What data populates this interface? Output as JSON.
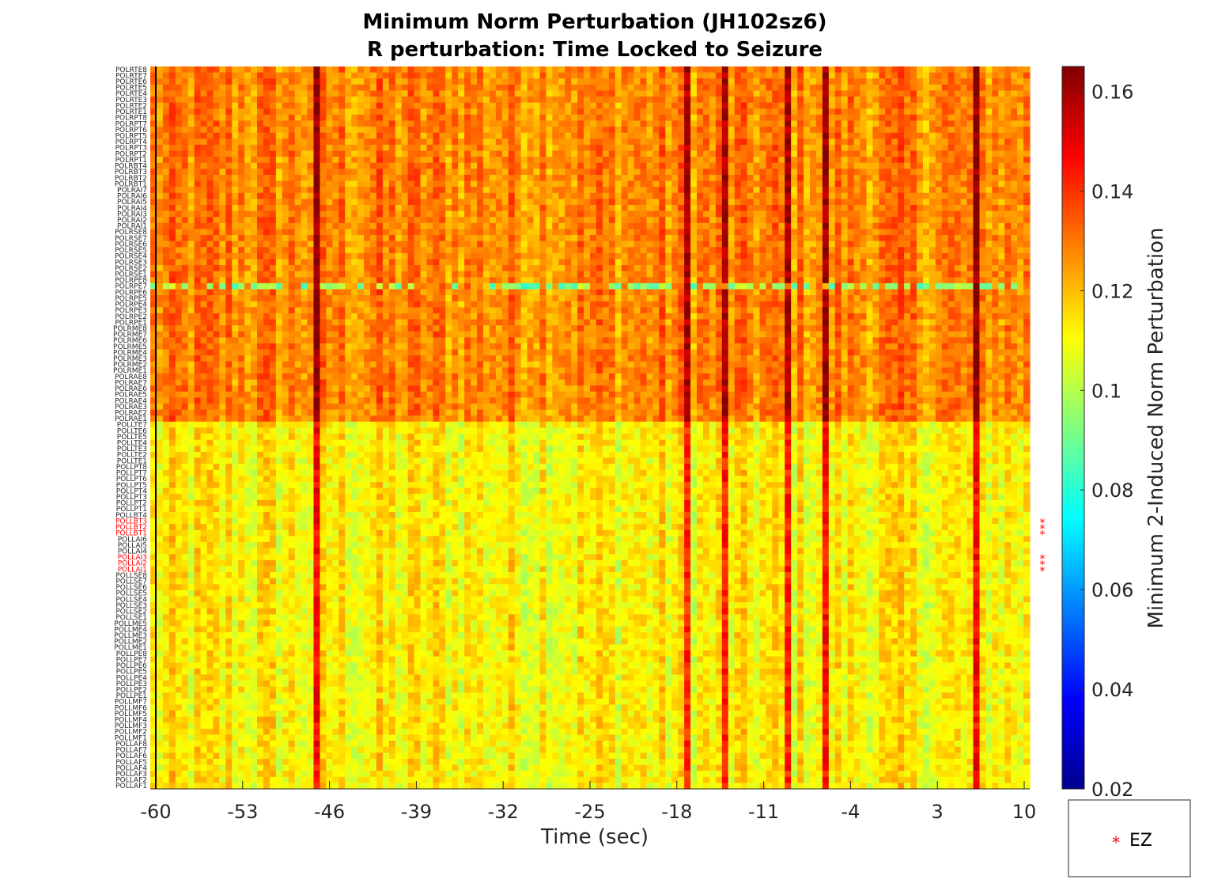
{
  "chart_data": {
    "type": "heatmap",
    "title_line1": "Minimum Norm Perturbation (JH102sz6)",
    "title_line2": "R perturbation:  Time Locked to Seizure",
    "xlabel": "Time (sec)",
    "colorbar_label": "Minimum 2-Induced Norm Perturbation",
    "x_ticks": [
      -60,
      -53,
      -46,
      -39,
      -32,
      -25,
      -18,
      -11,
      -4,
      3,
      10
    ],
    "xlim": [
      -60,
      10
    ],
    "colorbar_ticks": [
      0.16,
      0.14,
      0.12,
      0.1,
      0.08,
      0.06,
      0.04,
      0.02
    ],
    "clim": [
      0.02,
      0.165
    ],
    "colormap": "jet",
    "seizure_onset_line_x": -60,
    "n_time_windows": 140,
    "channel_labels_top_to_bottom": [
      "POLRTE8",
      "POLRTE7",
      "POLRTE6",
      "POLRTE5",
      "POLRTE4",
      "POLRTE3",
      "POLRTE2",
      "POLRTE1",
      "POLRPT8",
      "POLRPT7",
      "POLRPT6",
      "POLRPT5",
      "POLRPT4",
      "POLRPT3",
      "POLRPT2",
      "POLRPT1",
      "POLRBT4",
      "POLRBT3",
      "POLRBT2",
      "POLRBT1",
      "POLRAI7",
      "POLRAI6",
      "POLRAI5",
      "POLRAI4",
      "POLRAI3",
      "POLRAI2",
      "POLRAI1",
      "POLRSE8",
      "POLRSE7",
      "POLRSE6",
      "POLRSE5",
      "POLRSE4",
      "POLRSE3",
      "POLRSE2",
      "POLRSE1",
      "POLRPE8",
      "POLRPE7",
      "POLRPE6",
      "POLRPE5",
      "POLRPE4",
      "POLRPE3",
      "POLRPE2",
      "POLRPE1",
      "POLRME8",
      "POLRME7",
      "POLRME6",
      "POLRME5",
      "POLRME4",
      "POLRME3",
      "POLRME2",
      "POLRME1",
      "POLRAE8",
      "POLRAE7",
      "POLRAE6",
      "POLRAE5",
      "POLRAE4",
      "POLRAE3",
      "POLRAE2",
      "POLRAE1",
      "POLLTE7",
      "POLLTE6",
      "POLLTE5",
      "POLLTE4",
      "POLLTE3",
      "POLLTE2",
      "POLLTE1",
      "POLLPT8",
      "POLLPT7",
      "POLLPT6",
      "POLLPT5",
      "POLLPT4",
      "POLLPT3",
      "POLLPT2",
      "POLLPT1",
      "POLLBT4",
      "POLLBT3",
      "POLLBT2",
      "POLLBT1",
      "POLLAI6",
      "POLLAI5",
      "POLLAI4",
      "POLLAI3",
      "POLLAI2",
      "POLLAI1",
      "POLLSE8",
      "POLLSE7",
      "POLLSE6",
      "POLLSE5",
      "POLLSE4",
      "POLLSE3",
      "POLLSE2",
      "POLLSE1",
      "POLLME5",
      "POLLME4",
      "POLLME3",
      "POLLME2",
      "POLLME1",
      "POLLPE8",
      "POLLPE7",
      "POLLPE6",
      "POLLPE5",
      "POLLPE4",
      "POLLPE3",
      "POLLPE2",
      "POLLPE1",
      "POLLMF7",
      "POLLMF6",
      "POLLMF5",
      "POLLMF4",
      "POLLMF3",
      "POLLMF2",
      "POLLMF1",
      "POLLAF8",
      "POLLAF7",
      "POLLAF6",
      "POLLAF5",
      "POLLAF4",
      "POLLAF3",
      "POLLAF2",
      "POLLAF1"
    ],
    "ez_channels": [
      "POLLBT3",
      "POLLBT2",
      "POLLBT1",
      "POLLAI3",
      "POLLAI2",
      "POLLAI1"
    ],
    "ez_marker": "*",
    "ez_color": "#ff0000",
    "legend": {
      "placement": "bottom-right outside",
      "entry": "EZ"
    },
    "high_columns_time_sec": [
      -47,
      -17,
      -14,
      -9,
      -6,
      6
    ],
    "low_channel_row": "POLRPE7"
  }
}
